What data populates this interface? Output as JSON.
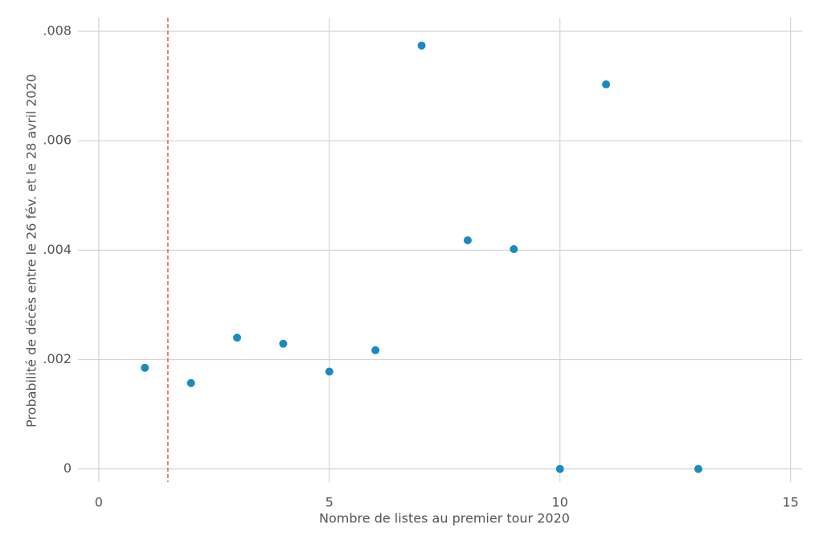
{
  "chart_data": {
    "type": "scatter",
    "x_label": "Nombre de listes au premier tour 2020",
    "y_label": "Probabilité de décès entre le 26 fév. et le 28 avril 2020",
    "x": [
      1,
      2,
      3,
      4,
      5,
      6,
      7,
      8,
      9,
      10,
      11,
      13
    ],
    "series": [
      {
        "color": "#1b8bbf",
        "values": [
          0.00185,
          0.00157,
          0.0024,
          0.00229,
          0.00178,
          0.00217,
          0.00774,
          0.00418,
          0.00402,
          0,
          0.00703,
          0
        ]
      }
    ],
    "xlim": [
      -0.45,
      15.25
    ],
    "ylim": [
      -0.00024,
      0.00825
    ],
    "xticks": [
      0,
      5,
      10,
      15
    ],
    "yticks": [
      0,
      {
        "value": 0.002,
        "label": ".002"
      },
      {
        "value": 0.004,
        "label": ".004"
      },
      {
        "value": 0.006,
        "label": ".006"
      },
      {
        "value": 0.008,
        "label": ".008"
      }
    ],
    "grid": true,
    "reference_line": {
      "x": 1.5,
      "color": "#e8603c"
    }
  }
}
